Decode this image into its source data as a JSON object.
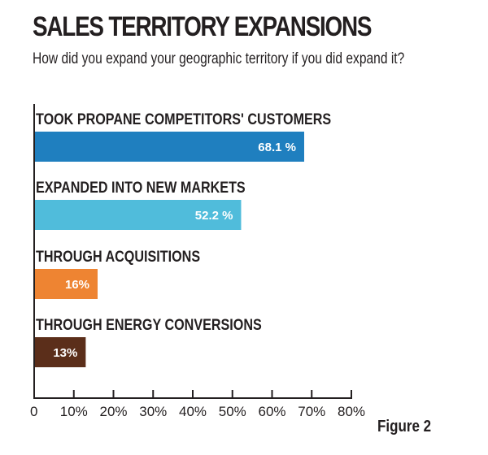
{
  "chart_data": {
    "type": "bar",
    "orientation": "horizontal",
    "title": "SALES TERRITORY EXPANSIONS",
    "subtitle": "How did you expand your geographic territory if you did expand it?",
    "figure_label": "Figure 2",
    "categories": [
      "TOOK PROPANE COMPETITORS' CUSTOMERS",
      "EXPANDED INTO NEW MARKETS",
      "THROUGH ACQUISITIONS",
      "THROUGH ENERGY CONVERSIONS"
    ],
    "values": [
      68.1,
      52.2,
      16,
      13
    ],
    "value_labels": [
      "68.1 %",
      "52.2 %",
      "16%",
      "13%"
    ],
    "colors": [
      "#1f7fbf",
      "#50bcdb",
      "#ee8432",
      "#5b2e1a"
    ],
    "xlim": [
      0,
      80
    ],
    "xticks": [
      0,
      10,
      20,
      30,
      40,
      50,
      60,
      70,
      80
    ],
    "xtick_labels": [
      "0",
      "10%",
      "20%",
      "30%",
      "40%",
      "50%",
      "60%",
      "70%",
      "80%"
    ],
    "xlabel": "",
    "ylabel": "",
    "grid": false,
    "legend": "none"
  }
}
